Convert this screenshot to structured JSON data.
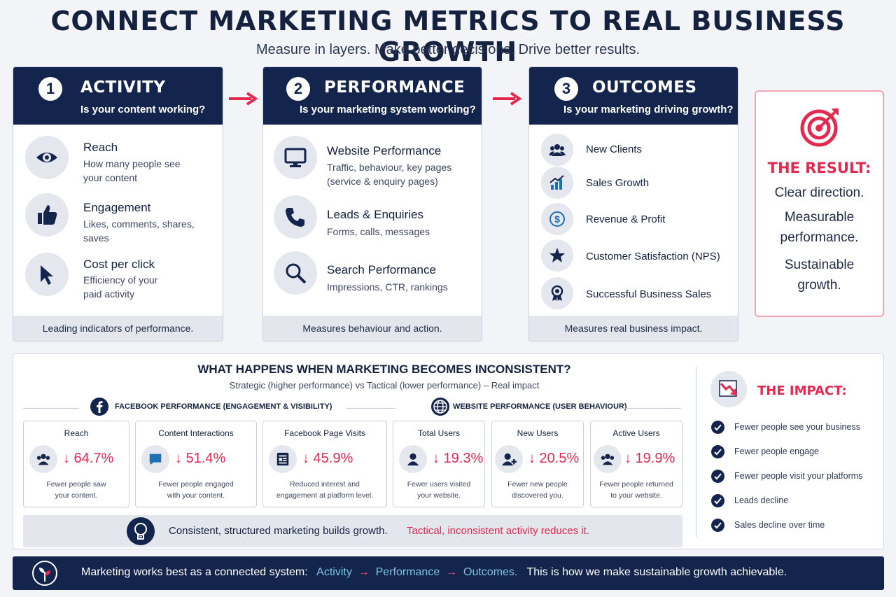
{
  "title": "CONNECT MARKETING METRICS TO REAL BUSINESS GROWTH",
  "subtitle": "Measure in layers. Make better decisions. Drive better results.",
  "columns": [
    {
      "number": "1",
      "name": "ACTIVITY",
      "question": "Is your content working?",
      "items": [
        {
          "icon": "eye-icon",
          "title": "Reach",
          "desc1": "How many people see",
          "desc2": "your content"
        },
        {
          "icon": "thumbs-up-icon",
          "title": "Engagement",
          "desc1": "Likes, comments, shares,",
          "desc2": "saves"
        },
        {
          "icon": "cursor-icon",
          "title": "Cost per click",
          "desc1": "Efficiency of your",
          "desc2": "paid activity"
        }
      ],
      "footer": "Leading indicators of performance."
    },
    {
      "number": "2",
      "name": "PERFORMANCE",
      "question": "Is your marketing system working?",
      "items": [
        {
          "icon": "monitor-icon",
          "title": "Website Performance",
          "desc1": "Traffic, behaviour, key pages",
          "desc2": "(service & enquiry pages)"
        },
        {
          "icon": "phone-icon",
          "title": "Leads & Enquiries",
          "desc1": "Forms, calls, messages",
          "desc2": ""
        },
        {
          "icon": "search-icon",
          "title": "Search Performance",
          "desc1": "Impressions, CTR, rankings",
          "desc2": ""
        }
      ],
      "footer": "Measures behaviour and action."
    },
    {
      "number": "3",
      "name": "OUTCOMES",
      "question": "Is your marketing driving growth?",
      "items": [
        {
          "icon": "users-icon",
          "label": "New Clients"
        },
        {
          "icon": "growth-chart-icon",
          "label": "Sales Growth"
        },
        {
          "icon": "dollar-icon",
          "label": "Revenue & Profit"
        },
        {
          "icon": "star-icon",
          "label": "Customer Satisfaction (NPS)"
        },
        {
          "icon": "award-icon",
          "label": "Successful Business Sales"
        }
      ],
      "footer": "Measures real business impact."
    }
  ],
  "result": {
    "icon": "target-icon",
    "title": "THE RESULT:",
    "line1": "Clear direction.",
    "line2a": "Measurable",
    "line2b": "performance.",
    "line3a": "Sustainable",
    "line3b": "growth."
  },
  "inconsistent": {
    "title": "WHAT HAPPENS WHEN MARKETING BECOMES INCONSISTENT?",
    "subtitle": "Strategic (higher performance) vs Tactical (lower performance) – Real impact",
    "facebook_label": "FACEBOOK PERFORMANCE (ENGAGEMENT & VISIBILITY)",
    "website_label": "WEBSITE PERFORMANCE (USER BEHAVIOUR)",
    "stats": [
      {
        "name": "Reach",
        "value": "↓ 64.7%",
        "d1": "Fewer people saw",
        "d2": "your content."
      },
      {
        "name": "Content Interactions",
        "value": "↓ 51.4%",
        "d1": "Fewer people engaged",
        "d2": "with your content."
      },
      {
        "name": "Facebook Page Visits",
        "value": "↓ 45.9%",
        "d1": "Reduced interest and",
        "d2": "engagement at platform level."
      },
      {
        "name": "Total Users",
        "value": "↓ 19.3%",
        "d1": "Fewer users visited",
        "d2": "your website."
      },
      {
        "name": "New Users",
        "value": "↓ 20.5%",
        "d1": "Fewer new people",
        "d2": "discovered you."
      },
      {
        "name": "Active Users",
        "value": "↓ 19.9%",
        "d1": "Fewer people returned",
        "d2": "to your website."
      }
    ],
    "note_a": "Consistent, structured marketing builds growth.",
    "note_b": "Tactical, inconsistent activity reduces it.",
    "impact_title": "THE IMPACT:",
    "impact_items": [
      "Fewer people see your business",
      "Fewer people engage",
      "Fewer people visit your platforms",
      "Leads decline",
      "Sales decline over time"
    ]
  },
  "footer": {
    "lead": "Marketing works best as a connected system:",
    "activity": "Activity",
    "performance": "Performance",
    "outcomes": "Outcomes.",
    "tail": "This is how we make sustainable growth achievable."
  },
  "colors": {
    "navy": "#14254d",
    "accent_red": "#e4294f",
    "teal": "#7ec3e0"
  }
}
